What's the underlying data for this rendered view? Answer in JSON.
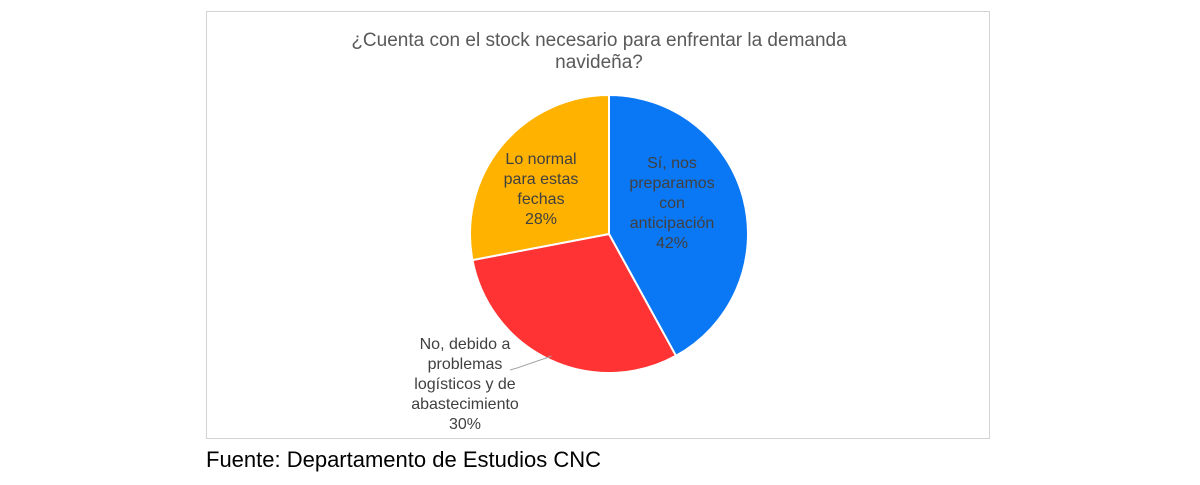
{
  "chart_data": {
    "type": "pie",
    "title_lines": [
      "¿Cuenta con el stock necesario para enfrentar la demanda",
      "navideña?"
    ],
    "slices": [
      {
        "name": "Sí, nos preparamos con anticipación",
        "label_lines": [
          "Sí, nos",
          "preparamos",
          "con",
          "anticipación"
        ],
        "value": 42,
        "value_label": "42%",
        "color": "#0a77f4"
      },
      {
        "name": "No, debido a problemas logísticos y de abastecimiento",
        "label_lines": [
          "No, debido a",
          "problemas",
          "logísticos y de",
          "abastecimiento"
        ],
        "value": 30,
        "value_label": "30%",
        "color": "#ff3333"
      },
      {
        "name": "Lo normal para estas fechas",
        "label_lines": [
          "Lo normal",
          "para estas",
          "fechas"
        ],
        "value": 28,
        "value_label": "28%",
        "color": "#ffb300"
      }
    ],
    "legend": "none",
    "labels": "on-slice-except-second-outside"
  },
  "source": "Fuente: Departamento de Estudios CNC"
}
